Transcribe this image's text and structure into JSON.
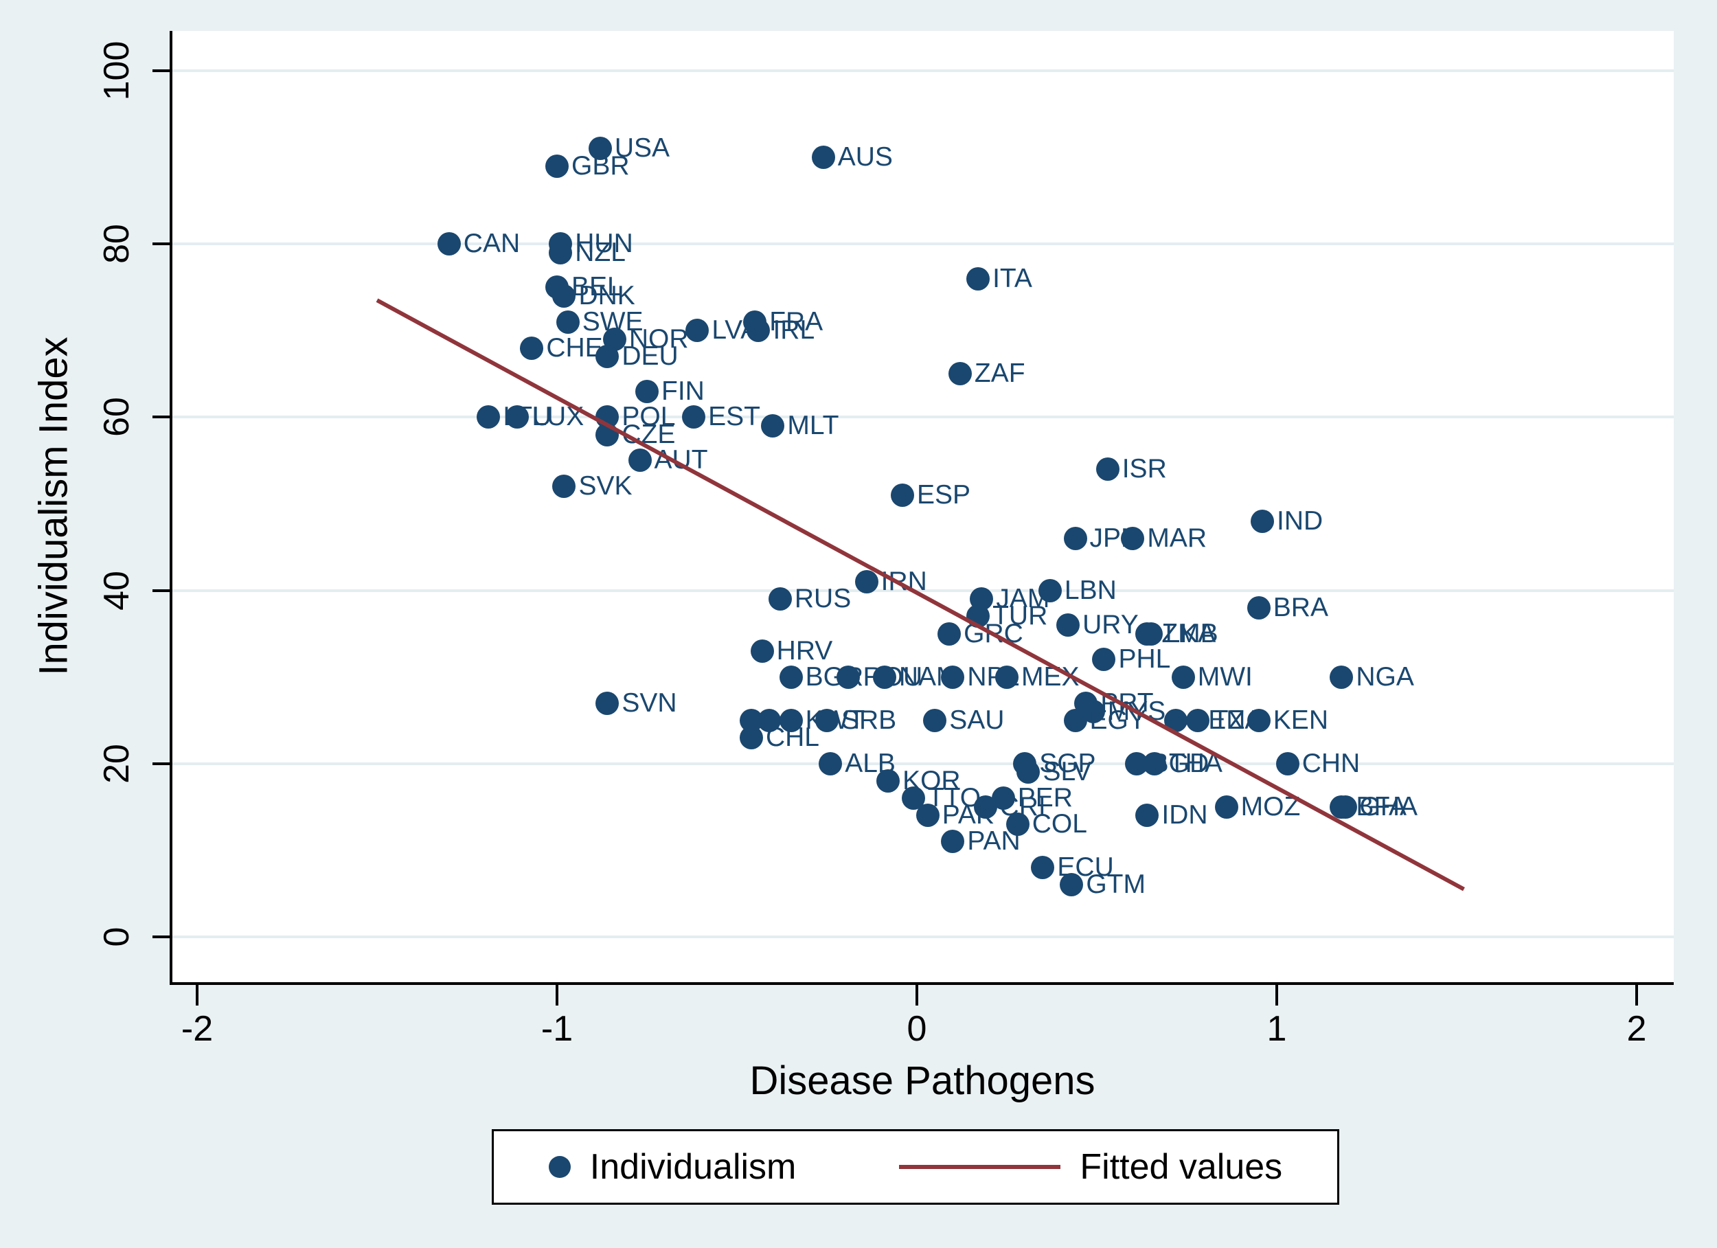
{
  "figure": {
    "background_color": "#eaf1f3",
    "plot_background_color": "#ffffff",
    "grid_color": "#e4edf0",
    "marker_color": "#1a476f",
    "fit_line_color": "#90353b",
    "point_label_color": "#1a476f"
  },
  "chart_data": {
    "type": "scatter",
    "title": "",
    "xlabel": "Disease Pathogens",
    "ylabel": "Individualism Index",
    "xlim": [
      -2.07,
      2.1
    ],
    "ylim": [
      -5.2,
      104.6
    ],
    "xticks": [
      -2,
      -1,
      0,
      1,
      2
    ],
    "yticks": [
      0,
      20,
      40,
      60,
      80,
      100
    ],
    "grid": "horizontal",
    "legend_position": "bottom-center",
    "series": [
      {
        "name": "Individualism",
        "type": "scatter",
        "points": [
          {
            "label": "USA",
            "x": -0.88,
            "y": 91
          },
          {
            "label": "GBR",
            "x": -1.0,
            "y": 89
          },
          {
            "label": "AUS",
            "x": -0.26,
            "y": 90
          },
          {
            "label": "CAN",
            "x": -1.3,
            "y": 80
          },
          {
            "label": "HUN",
            "x": -0.99,
            "y": 80
          },
          {
            "label": "NZL",
            "x": -0.99,
            "y": 79
          },
          {
            "label": "ITA",
            "x": 0.17,
            "y": 76
          },
          {
            "label": "BEL",
            "x": -1.0,
            "y": 75
          },
          {
            "label": "DNK",
            "x": -0.98,
            "y": 74
          },
          {
            "label": "SWE",
            "x": -0.97,
            "y": 71
          },
          {
            "label": "FRA",
            "x": -0.45,
            "y": 71
          },
          {
            "label": "IRL",
            "x": -0.44,
            "y": 70
          },
          {
            "label": "LVA",
            "x": -0.61,
            "y": 70
          },
          {
            "label": "NOR",
            "x": -0.84,
            "y": 69
          },
          {
            "label": "CHE",
            "x": -1.07,
            "y": 68
          },
          {
            "label": "DEU",
            "x": -0.86,
            "y": 67
          },
          {
            "label": "ZAF",
            "x": 0.12,
            "y": 65
          },
          {
            "label": "FIN",
            "x": -0.75,
            "y": 63
          },
          {
            "label": "LTU",
            "x": -1.19,
            "y": 60
          },
          {
            "label": "LUX",
            "x": -1.11,
            "y": 60
          },
          {
            "label": "POL",
            "x": -0.86,
            "y": 60
          },
          {
            "label": "EST",
            "x": -0.62,
            "y": 60
          },
          {
            "label": "MLT",
            "x": -0.4,
            "y": 59
          },
          {
            "label": "CZE",
            "x": -0.86,
            "y": 58
          },
          {
            "label": "AUT",
            "x": -0.77,
            "y": 55
          },
          {
            "label": "ISR",
            "x": 0.53,
            "y": 54
          },
          {
            "label": "SVK",
            "x": -0.98,
            "y": 52
          },
          {
            "label": "ESP",
            "x": -0.04,
            "y": 51
          },
          {
            "label": "IND",
            "x": 0.96,
            "y": 48
          },
          {
            "label": "JPN",
            "x": 0.44,
            "y": 46
          },
          {
            "label": "MAR",
            "x": 0.6,
            "y": 46
          },
          {
            "label": "IRN",
            "x": -0.14,
            "y": 41
          },
          {
            "label": "LBN",
            "x": 0.37,
            "y": 40
          },
          {
            "label": "RUS",
            "x": -0.38,
            "y": 39
          },
          {
            "label": "JAM",
            "x": 0.18,
            "y": 39
          },
          {
            "label": "BRA",
            "x": 0.95,
            "y": 38
          },
          {
            "label": "TUR",
            "x": 0.17,
            "y": 37
          },
          {
            "label": "URY",
            "x": 0.42,
            "y": 36
          },
          {
            "label": "GRC",
            "x": 0.09,
            "y": 35
          },
          {
            "label": "ZMB",
            "x": 0.64,
            "y": 35
          },
          {
            "label": "LKA",
            "x": 0.65,
            "y": 35
          },
          {
            "label": "HRV",
            "x": -0.43,
            "y": 33
          },
          {
            "label": "PHL",
            "x": 0.52,
            "y": 32
          },
          {
            "label": "BGR",
            "x": -0.35,
            "y": 30
          },
          {
            "label": "ROU",
            "x": -0.19,
            "y": 30
          },
          {
            "label": "NAM",
            "x": -0.09,
            "y": 30
          },
          {
            "label": "NPL",
            "x": 0.1,
            "y": 30
          },
          {
            "label": "MEX",
            "x": 0.25,
            "y": 30
          },
          {
            "label": "MWI",
            "x": 0.74,
            "y": 30
          },
          {
            "label": "NGA",
            "x": 1.18,
            "y": 30
          },
          {
            "label": "SVN",
            "x": -0.86,
            "y": 27
          },
          {
            "label": "PRT",
            "x": 0.47,
            "y": 27
          },
          {
            "label": "MYS",
            "x": 0.49,
            "y": 26
          },
          {
            "label": "EGY",
            "x": 0.44,
            "y": 25
          },
          {
            "label": "",
            "x": -0.46,
            "y": 25
          },
          {
            "label": "",
            "x": -0.41,
            "y": 25
          },
          {
            "label": "KWT",
            "x": -0.35,
            "y": 25
          },
          {
            "label": "SRB",
            "x": -0.25,
            "y": 25
          },
          {
            "label": "SAU",
            "x": 0.05,
            "y": 25
          },
          {
            "label": "SEN",
            "x": 0.72,
            "y": 25
          },
          {
            "label": "TZA",
            "x": 0.78,
            "y": 25
          },
          {
            "label": "KEN",
            "x": 0.95,
            "y": 25
          },
          {
            "label": "CHL",
            "x": -0.46,
            "y": 23
          },
          {
            "label": "ALB",
            "x": -0.24,
            "y": 20
          },
          {
            "label": "SGP",
            "x": 0.3,
            "y": 20
          },
          {
            "label": "CHN",
            "x": 1.03,
            "y": 20
          },
          {
            "label": "BGD",
            "x": 0.61,
            "y": 20
          },
          {
            "label": "THA",
            "x": 0.66,
            "y": 20
          },
          {
            "label": "SLV",
            "x": 0.31,
            "y": 19
          },
          {
            "label": "KOR",
            "x": -0.08,
            "y": 18
          },
          {
            "label": "TTO",
            "x": -0.01,
            "y": 16
          },
          {
            "label": "CRI",
            "x": 0.19,
            "y": 15
          },
          {
            "label": "PER",
            "x": 0.24,
            "y": 16
          },
          {
            "label": "COL",
            "x": 0.28,
            "y": 13
          },
          {
            "label": "PAN",
            "x": 0.1,
            "y": 11
          },
          {
            "label": "ECU",
            "x": 0.35,
            "y": 8
          },
          {
            "label": "GTM",
            "x": 0.43,
            "y": 6
          },
          {
            "label": "MOZ",
            "x": 0.86,
            "y": 15
          },
          {
            "label": "BFA",
            "x": 1.18,
            "y": 15
          },
          {
            "label": "GHA",
            "x": 1.19,
            "y": 15
          },
          {
            "label": "PAK",
            "x": 0.03,
            "y": 14
          },
          {
            "label": "IDN",
            "x": 0.64,
            "y": 14
          }
        ]
      },
      {
        "name": "Fitted values",
        "type": "line",
        "x1": -1.5,
        "y1": 73.5,
        "x2": 1.52,
        "y2": 5.5
      }
    ]
  },
  "legend": {
    "items": [
      {
        "marker": "dot",
        "label": "Individualism"
      },
      {
        "marker": "line",
        "label": "Fitted values"
      }
    ]
  }
}
